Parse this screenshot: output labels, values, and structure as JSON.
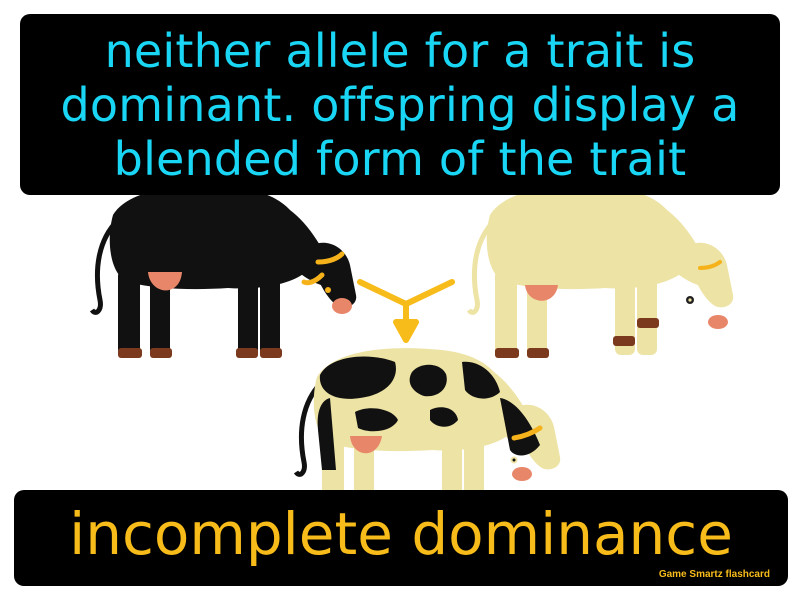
{
  "definition": {
    "lines": [
      "neither allele for a trait is",
      "dominant. offspring display a",
      "blended form of the trait"
    ]
  },
  "term": "incomplete dominance",
  "brand": "Game Smartz flashcard",
  "colors": {
    "definition_text": "#1ad6f5",
    "term_text": "#f8bc1a",
    "panel_background": "#000000",
    "arrow": "#f8bc1a",
    "black_cow": "#111111",
    "cream_cow": "#ede3a4",
    "udder": "#e8866a",
    "hoof": "#7b3a1e",
    "horn": "#f5b21a"
  },
  "illustration": {
    "parents": [
      "black-cow",
      "cream-cow"
    ],
    "offspring": "spotted-cow",
    "arrow": "merge-arrow-icon"
  }
}
